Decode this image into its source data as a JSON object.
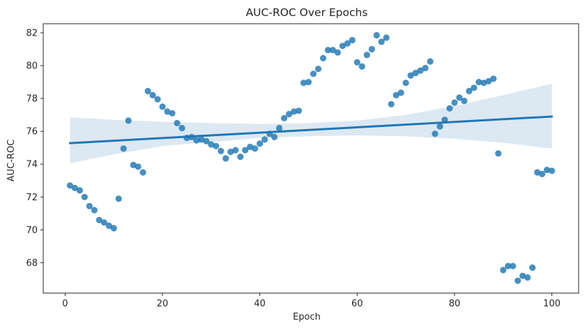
{
  "chart_data": {
    "type": "scatter",
    "title": "AUC-ROC Over Epochs",
    "xlabel": "Epoch",
    "ylabel": "AUC-ROC",
    "xlim": [
      -4.5,
      105.5
    ],
    "ylim": [
      66.15,
      82.55
    ],
    "xticks": [
      0,
      20,
      40,
      60,
      80,
      100
    ],
    "yticks": [
      68,
      70,
      72,
      74,
      76,
      78,
      80,
      82
    ],
    "grid": false,
    "colors": {
      "points": "#1f77b4",
      "line": "#1f77b4",
      "band": "#c5d8ea"
    },
    "regression": {
      "x": [
        1,
        100
      ],
      "y": [
        75.28,
        76.9
      ]
    },
    "confidence_band": {
      "x": [
        1,
        10,
        20,
        30,
        40,
        50,
        60,
        70,
        80,
        90,
        100
      ],
      "lower": [
        74.05,
        74.6,
        75.1,
        75.35,
        75.6,
        75.7,
        75.75,
        75.7,
        75.55,
        75.3,
        74.95
      ],
      "upper": [
        76.85,
        76.7,
        76.58,
        76.5,
        76.45,
        76.5,
        76.65,
        77.0,
        77.55,
        78.2,
        78.9
      ]
    },
    "points": {
      "x": [
        1,
        2,
        3,
        4,
        5,
        6,
        7,
        8,
        9,
        10,
        11,
        12,
        13,
        14,
        15,
        16,
        17,
        18,
        19,
        20,
        21,
        22,
        23,
        24,
        25,
        26,
        27,
        28,
        29,
        30,
        31,
        32,
        33,
        34,
        35,
        36,
        37,
        38,
        39,
        40,
        41,
        42,
        43,
        44,
        45,
        46,
        47,
        48,
        49,
        50,
        51,
        52,
        53,
        54,
        55,
        56,
        57,
        58,
        59,
        60,
        61,
        62,
        63,
        64,
        65,
        66,
        67,
        68,
        69,
        70,
        71,
        72,
        73,
        74,
        75,
        76,
        77,
        78,
        79,
        80,
        81,
        82,
        83,
        84,
        85,
        86,
        87,
        88,
        89,
        90,
        91,
        92,
        93,
        94,
        95,
        96,
        97,
        98,
        99,
        100
      ],
      "y": [
        72.7,
        72.55,
        72.4,
        72.0,
        71.45,
        71.2,
        70.6,
        70.45,
        70.25,
        70.1,
        71.9,
        74.95,
        76.65,
        73.95,
        73.85,
        73.5,
        78.45,
        78.2,
        77.95,
        77.5,
        77.2,
        77.1,
        76.5,
        76.2,
        75.6,
        75.65,
        75.45,
        75.5,
        75.4,
        75.2,
        75.1,
        74.8,
        74.35,
        74.75,
        74.85,
        74.45,
        74.85,
        75.05,
        74.95,
        75.25,
        75.5,
        75.85,
        75.65,
        76.2,
        76.8,
        77.05,
        77.2,
        77.25,
        78.95,
        79.0,
        79.5,
        79.8,
        80.45,
        80.95,
        80.95,
        80.8,
        81.2,
        81.35,
        81.55,
        80.2,
        79.95,
        80.65,
        81.0,
        81.85,
        81.45,
        81.7,
        77.65,
        78.2,
        78.35,
        78.95,
        79.4,
        79.55,
        79.7,
        79.85,
        80.25,
        75.85,
        76.3,
        76.7,
        77.4,
        77.75,
        78.05,
        77.85,
        78.45,
        78.65,
        79.0,
        78.95,
        79.05,
        79.2,
        74.65,
        67.55,
        67.8,
        67.8,
        66.9,
        67.2,
        67.1,
        67.7,
        73.5,
        73.4,
        73.65,
        73.6
      ]
    }
  }
}
